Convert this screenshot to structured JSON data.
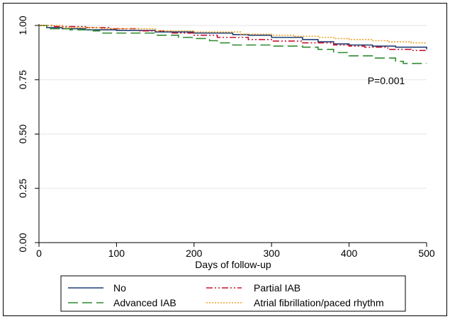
{
  "chart_data": {
    "type": "line",
    "title": "",
    "xlabel": "Days of follow-up",
    "ylabel": "",
    "xlim": [
      0,
      500
    ],
    "ylim": [
      0,
      1
    ],
    "x_ticks": [
      "0",
      "100",
      "200",
      "300",
      "400",
      "500"
    ],
    "y_ticks": [
      "0.00",
      "0.25",
      "0.50",
      "0.75",
      "1.00"
    ],
    "grid": "horizontal",
    "legend_position": "bottom",
    "annotation": "P=0.001",
    "series": [
      {
        "name": "No",
        "color": "#1f3f73",
        "dash": "solid",
        "points": [
          [
            0,
            1.0
          ],
          [
            10,
            0.99
          ],
          [
            30,
            0.985
          ],
          [
            60,
            0.98
          ],
          [
            100,
            0.977
          ],
          [
            150,
            0.97
          ],
          [
            200,
            0.965
          ],
          [
            250,
            0.958
          ],
          [
            270,
            0.955
          ],
          [
            300,
            0.945
          ],
          [
            340,
            0.935
          ],
          [
            360,
            0.925
          ],
          [
            380,
            0.915
          ],
          [
            400,
            0.91
          ],
          [
            430,
            0.905
          ],
          [
            460,
            0.9
          ],
          [
            500,
            0.89
          ]
        ]
      },
      {
        "name": "Partial IAB",
        "color": "#c8102e",
        "dash": "dashdotdot",
        "points": [
          [
            0,
            1.0
          ],
          [
            20,
            0.995
          ],
          [
            60,
            0.99
          ],
          [
            90,
            0.985
          ],
          [
            130,
            0.975
          ],
          [
            170,
            0.965
          ],
          [
            200,
            0.955
          ],
          [
            230,
            0.945
          ],
          [
            270,
            0.935
          ],
          [
            300,
            0.928
          ],
          [
            340,
            0.92
          ],
          [
            380,
            0.91
          ],
          [
            400,
            0.905
          ],
          [
            420,
            0.9
          ],
          [
            450,
            0.89
          ],
          [
            480,
            0.885
          ],
          [
            500,
            0.885
          ]
        ]
      },
      {
        "name": "Advanced IAB",
        "color": "#2e8b2e",
        "dash": "longdash",
        "points": [
          [
            0,
            1.0
          ],
          [
            10,
            0.985
          ],
          [
            40,
            0.98
          ],
          [
            70,
            0.975
          ],
          [
            80,
            0.965
          ],
          [
            120,
            0.965
          ],
          [
            150,
            0.955
          ],
          [
            180,
            0.945
          ],
          [
            200,
            0.94
          ],
          [
            220,
            0.93
          ],
          [
            230,
            0.92
          ],
          [
            250,
            0.91
          ],
          [
            300,
            0.905
          ],
          [
            340,
            0.9
          ],
          [
            360,
            0.89
          ],
          [
            380,
            0.875
          ],
          [
            400,
            0.86
          ],
          [
            430,
            0.85
          ],
          [
            460,
            0.835
          ],
          [
            470,
            0.825
          ],
          [
            500,
            0.825
          ]
        ]
      },
      {
        "name": "Atrial fibrillation/paced rhythm",
        "color": "#f0a020",
        "dash": "dotted",
        "points": [
          [
            0,
            1.0
          ],
          [
            30,
            0.99
          ],
          [
            80,
            0.985
          ],
          [
            150,
            0.975
          ],
          [
            200,
            0.97
          ],
          [
            260,
            0.96
          ],
          [
            300,
            0.955
          ],
          [
            330,
            0.95
          ],
          [
            360,
            0.945
          ],
          [
            380,
            0.94
          ],
          [
            400,
            0.935
          ],
          [
            430,
            0.93
          ],
          [
            450,
            0.925
          ],
          [
            480,
            0.92
          ],
          [
            500,
            0.92
          ]
        ]
      }
    ]
  },
  "legend": {
    "items": [
      {
        "label": "No"
      },
      {
        "label": "Partial IAB"
      },
      {
        "label": "Advanced IAB"
      },
      {
        "label": "Atrial fibrillation/paced rhythm"
      }
    ]
  }
}
